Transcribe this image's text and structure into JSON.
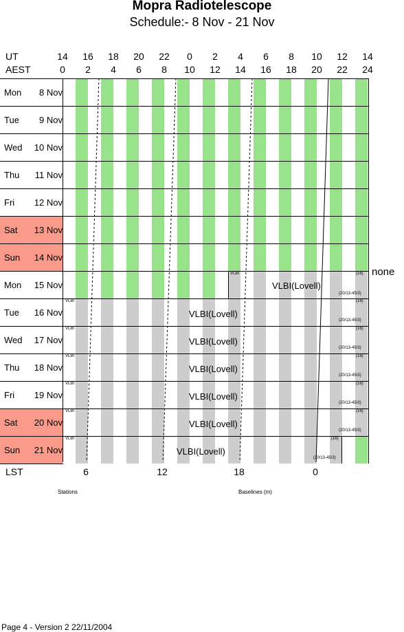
{
  "header": {
    "title": "Mopra Radiotelescope",
    "subtitle": "Schedule:- 8  Nov - 21 Nov"
  },
  "time_axis": {
    "ut_label": "UT",
    "aest_label": "AEST",
    "ut": [
      "14",
      "16",
      "18",
      "20",
      "22",
      "0",
      "2",
      "4",
      "6",
      "8",
      "10",
      "12",
      "14"
    ],
    "aest": [
      "0",
      "2",
      "4",
      "6",
      "8",
      "10",
      "12",
      "14",
      "16",
      "18",
      "20",
      "22",
      "24"
    ]
  },
  "days": [
    {
      "name": "Mon",
      "date": "8  Nov",
      "weekend": false
    },
    {
      "name": "Tue",
      "date": "9  Nov",
      "weekend": false
    },
    {
      "name": "Wed",
      "date": "10 Nov",
      "weekend": false
    },
    {
      "name": "Thu",
      "date": "11 Nov",
      "weekend": false
    },
    {
      "name": "Fri",
      "date": "12 Nov",
      "weekend": false
    },
    {
      "name": "Sat",
      "date": "13 Nov",
      "weekend": true
    },
    {
      "name": "Sun",
      "date": "14 Nov",
      "weekend": true
    },
    {
      "name": "Mon",
      "date": "15 Nov",
      "weekend": false
    },
    {
      "name": "Tue",
      "date": "16 Nov",
      "weekend": false
    },
    {
      "name": "Wed",
      "date": "17 Nov",
      "weekend": false
    },
    {
      "name": "Thu",
      "date": "18 Nov",
      "weekend": false
    },
    {
      "name": "Fri",
      "date": "19 Nov",
      "weekend": false
    },
    {
      "name": "Sat",
      "date": "20 Nov",
      "weekend": true
    },
    {
      "name": "Sun",
      "date": "21 Nov",
      "weekend": true
    }
  ],
  "blocks": {
    "vlbi_tag": "VLBI",
    "vlbi_label": "VLBI(Lovell)",
    "stations": "(16)",
    "baselines": "(20/13-45/3)",
    "none_label": "none"
  },
  "lst_axis": {
    "label": "LST",
    "values": [
      "6",
      "12",
      "18",
      "0"
    ]
  },
  "footer": {
    "stations_label": "Stations",
    "baselines_label": "Baselines (m)",
    "page_info": "Page 4 - Version 2  22/11/2004"
  },
  "colors": {
    "daytime_stripe": "#97e28b",
    "scheduled_stripe": "#cdcdcd",
    "weekend": "#f99a8a"
  }
}
